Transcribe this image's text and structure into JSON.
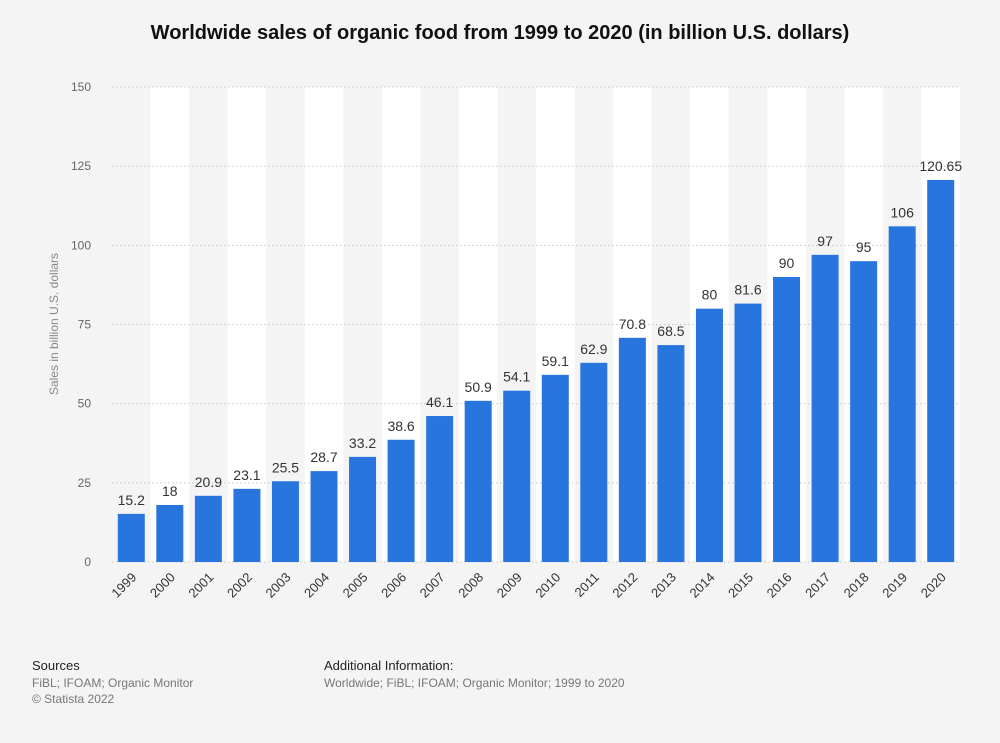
{
  "chart_data": {
    "type": "bar",
    "title": "Worldwide sales of organic food from 1999 to 2020 (in billion U.S. dollars)",
    "xlabel": "",
    "ylabel": "Sales in billion U.S. dollars",
    "categories": [
      "1999",
      "2000",
      "2001",
      "2002",
      "2003",
      "2004",
      "2005",
      "2006",
      "2007",
      "2008",
      "2009",
      "2010",
      "2011",
      "2012",
      "2013",
      "2014",
      "2015",
      "2016",
      "2017",
      "2018",
      "2019",
      "2020"
    ],
    "values": [
      15.2,
      18,
      20.9,
      23.1,
      25.5,
      28.7,
      33.2,
      38.6,
      46.1,
      50.9,
      54.1,
      59.1,
      62.9,
      70.8,
      68.5,
      80,
      81.6,
      90,
      97,
      95,
      106,
      120.65
    ],
    "value_labels": [
      "15.2",
      "18",
      "20.9",
      "23.1",
      "25.5",
      "28.7",
      "33.2",
      "38.6",
      "46.1",
      "50.9",
      "54.1",
      "59.1",
      "62.9",
      "70.8",
      "68.5",
      "80",
      "81.6",
      "90",
      "97",
      "95",
      "106",
      "120.65"
    ],
    "ylim": [
      0,
      150
    ],
    "yticks": [
      0,
      25,
      50,
      75,
      100,
      125,
      150
    ],
    "grid": true,
    "bar_color": "#2876dd"
  },
  "footer": {
    "sources_heading": "Sources",
    "sources_line1": "FiBL; IFOAM; Organic Monitor",
    "sources_line2": "© Statista 2022",
    "additional_heading": "Additional Information:",
    "additional_text": "Worldwide; FiBL; IFOAM; Organic Monitor; 1999 to 2020"
  }
}
